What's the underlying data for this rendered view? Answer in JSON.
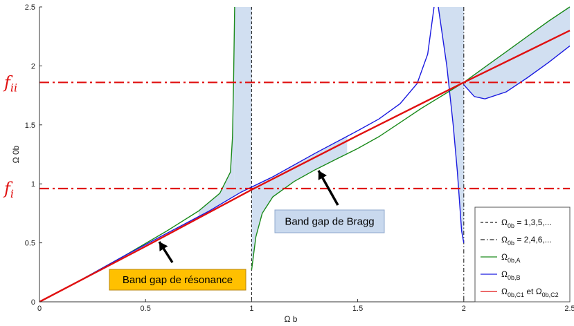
{
  "chart_data": {
    "type": "line",
    "xlabel": "Ω b",
    "ylabel": "Ω 0b",
    "xlim": [
      0,
      2.5
    ],
    "ylim": [
      0,
      2.5
    ],
    "xticks": [
      "0",
      "0.5",
      "1",
      "1.5",
      "2",
      "2.5"
    ],
    "yticks": [
      "0",
      "0.5",
      "1",
      "1.5",
      "2",
      "2.5"
    ],
    "grid": false,
    "reference_lines": [
      {
        "label": "f_i",
        "base": "f",
        "sub": "i",
        "y": 0.96,
        "color": "#e01010"
      },
      {
        "label": "f_ii",
        "base": "f",
        "sub": "ii",
        "y": 1.86,
        "color": "#e01010"
      }
    ],
    "vertical_lines": [
      {
        "x": 1,
        "style": "dashed"
      },
      {
        "x": 2,
        "style": "dashdot"
      }
    ],
    "series": [
      {
        "name": "Ω0b,A",
        "color": "#1a8a1a",
        "points": [
          [
            0,
            0
          ],
          [
            0.2,
            0.19
          ],
          [
            0.4,
            0.39
          ],
          [
            0.6,
            0.6
          ],
          [
            0.75,
            0.77
          ],
          [
            0.85,
            0.92
          ],
          [
            0.9,
            1.1
          ],
          [
            0.91,
            1.4
          ],
          [
            0.915,
            1.9
          ],
          [
            0.92,
            2.5
          ],
          null,
          [
            1.0,
            0.27
          ],
          [
            1.02,
            0.55
          ],
          [
            1.05,
            0.75
          ],
          [
            1.1,
            0.89
          ],
          [
            1.2,
            1.02
          ],
          [
            1.3,
            1.12
          ],
          [
            1.4,
            1.21
          ],
          [
            1.5,
            1.3
          ],
          [
            1.6,
            1.4
          ],
          [
            1.7,
            1.52
          ],
          [
            1.8,
            1.64
          ],
          [
            1.9,
            1.75
          ],
          [
            2.0,
            1.86
          ],
          [
            2.1,
            1.99
          ],
          [
            2.2,
            2.12
          ],
          [
            2.3,
            2.25
          ],
          [
            2.4,
            2.38
          ],
          [
            2.5,
            2.5
          ]
        ]
      },
      {
        "name": "Ω0b,B",
        "color": "#1a1ae0",
        "points": [
          [
            0,
            0
          ],
          [
            0.2,
            0.19
          ],
          [
            0.4,
            0.39
          ],
          [
            0.6,
            0.58
          ],
          [
            0.8,
            0.77
          ],
          [
            0.95,
            0.93
          ],
          [
            1.1,
            1.06
          ],
          [
            1.3,
            1.26
          ],
          [
            1.5,
            1.45
          ],
          [
            1.6,
            1.55
          ],
          [
            1.7,
            1.68
          ],
          [
            1.78,
            1.85
          ],
          [
            1.83,
            2.1
          ],
          [
            1.86,
            2.5
          ],
          null,
          [
            1.88,
            2.5
          ],
          [
            1.92,
            2.0
          ],
          [
            1.95,
            1.5
          ],
          [
            1.97,
            1.1
          ],
          [
            1.99,
            0.6
          ],
          [
            2.0,
            0.5
          ],
          null,
          [
            2.0,
            1.84
          ],
          [
            2.05,
            1.74
          ],
          [
            2.1,
            1.72
          ],
          [
            2.2,
            1.78
          ],
          [
            2.3,
            1.9
          ],
          [
            2.4,
            2.03
          ],
          [
            2.5,
            2.17
          ]
        ]
      },
      {
        "name": "Ω0b,C1 et Ω0b,C2",
        "color": "#e01010",
        "points": [
          [
            0,
            0
          ],
          [
            0.5,
            0.47
          ],
          [
            1,
            0.95
          ],
          [
            1.5,
            1.41
          ],
          [
            2,
            1.86
          ],
          [
            2.5,
            2.3
          ]
        ]
      }
    ],
    "annotations": [
      {
        "text": "Band gap de résonance",
        "box_color": "#ffc000"
      },
      {
        "text": "Band gap de Bragg",
        "box_color": "#c9d9ee"
      }
    ],
    "legend": {
      "position": "bottom-right",
      "entries": [
        {
          "base": "Ω",
          "sub": "0b",
          "rest": " = 1,3,5,...",
          "style": "dashed",
          "color": "#222222"
        },
        {
          "base": "Ω",
          "sub": "0b",
          "rest": " = 2,4,6,...",
          "style": "dashdot",
          "color": "#222222"
        },
        {
          "base": "Ω",
          "sub": "0b,A",
          "rest": "",
          "style": "solid",
          "color": "#1a8a1a"
        },
        {
          "base": "Ω",
          "sub": "0b,B",
          "rest": "",
          "style": "solid",
          "color": "#1a1ae0"
        },
        {
          "base": "Ω",
          "sub": "0b,C1",
          "rest": " et Ω",
          "sub2": "0b,C2",
          "style": "solid",
          "color": "#e01010"
        }
      ]
    },
    "colors": {
      "band_fill": "#c9d9ee",
      "axis": "#333333"
    }
  }
}
